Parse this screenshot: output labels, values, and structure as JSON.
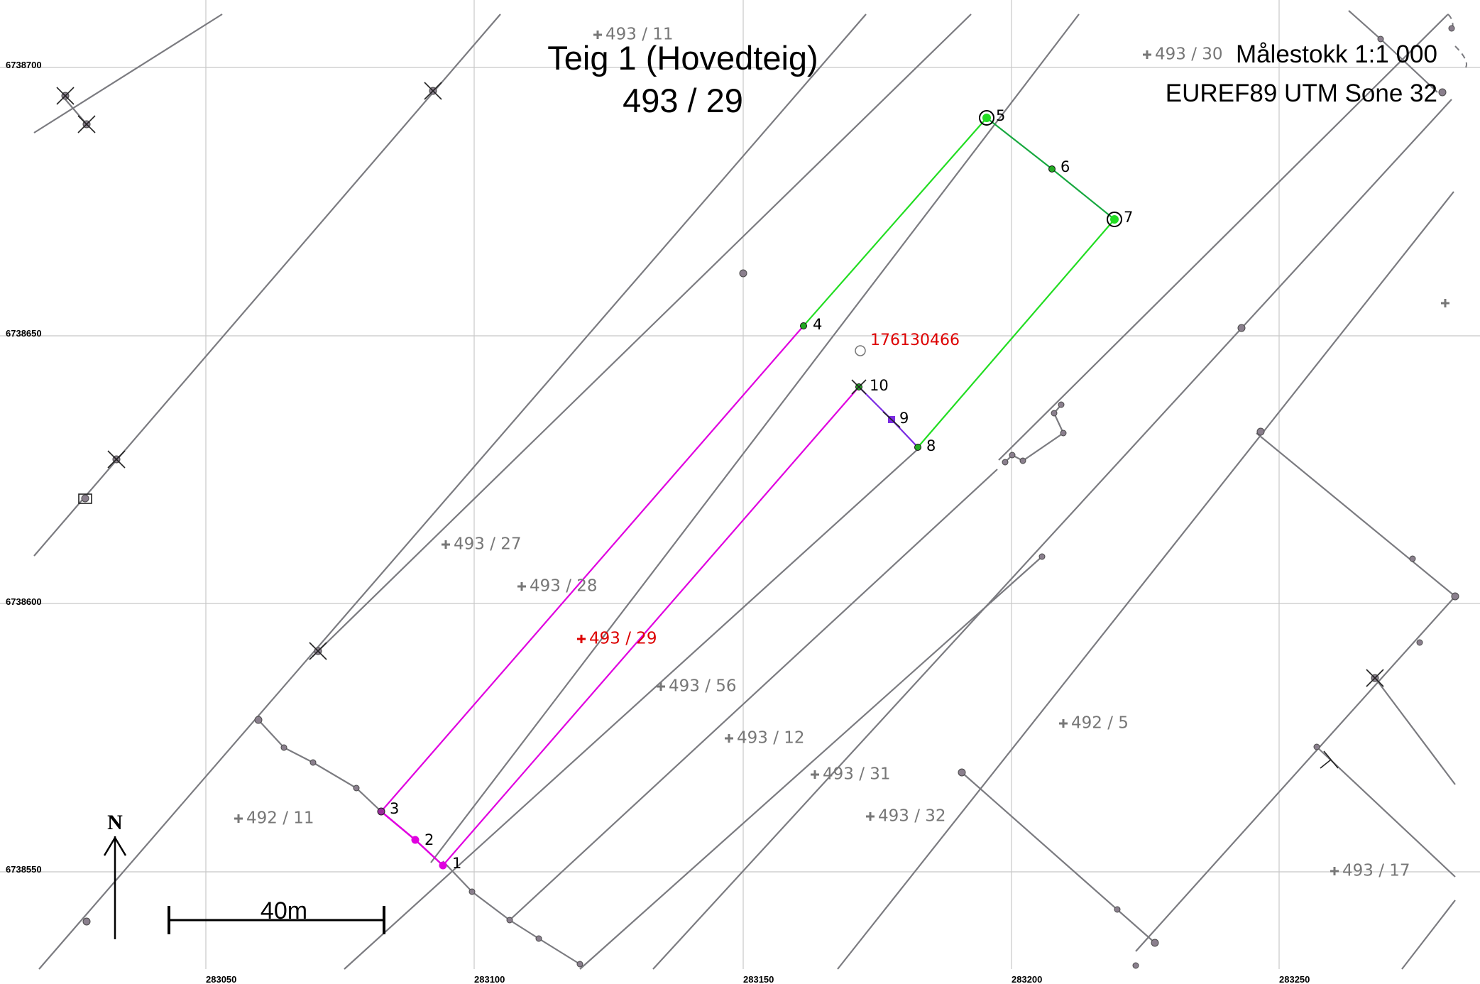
{
  "map": {
    "title": "Teig 1 (Hovedteig)",
    "subtitle": "493 / 29",
    "scale_text": "Målestokk 1:1 000",
    "projection_text": "EUREF89 UTM Sone 32",
    "north_label": "N",
    "scalebar_label": "40m",
    "object_id": "176130466",
    "colors": {
      "main_parcel": "#e000e0",
      "green_parcel": "#22dd22",
      "purple_edge": "#7b2be2",
      "parcel_lines": "#7b7b80",
      "highlight_label": "#dd0000"
    },
    "y_ticks": [
      "6738700",
      "6738650",
      "6738600",
      "6738550"
    ],
    "x_ticks": [
      "283050",
      "283100",
      "283150",
      "283200",
      "283250"
    ],
    "parcel_labels": [
      {
        "text": "493 / 11",
        "highlight": false
      },
      {
        "text": "493 / 30",
        "highlight": false
      },
      {
        "text": "493 / 27",
        "highlight": false
      },
      {
        "text": "493 / 28",
        "highlight": false
      },
      {
        "text": "493 / 29",
        "highlight": true
      },
      {
        "text": "493 / 56",
        "highlight": false
      },
      {
        "text": "493 / 12",
        "highlight": false
      },
      {
        "text": "492 / 5",
        "highlight": false
      },
      {
        "text": "493 / 31",
        "highlight": false
      },
      {
        "text": "493 / 32",
        "highlight": false
      },
      {
        "text": "492 / 11",
        "highlight": false
      },
      {
        "text": "493 / 17",
        "highlight": false
      }
    ],
    "boundary_points": [
      "1",
      "2",
      "3",
      "4",
      "5",
      "6",
      "7",
      "8",
      "9",
      "10"
    ]
  }
}
